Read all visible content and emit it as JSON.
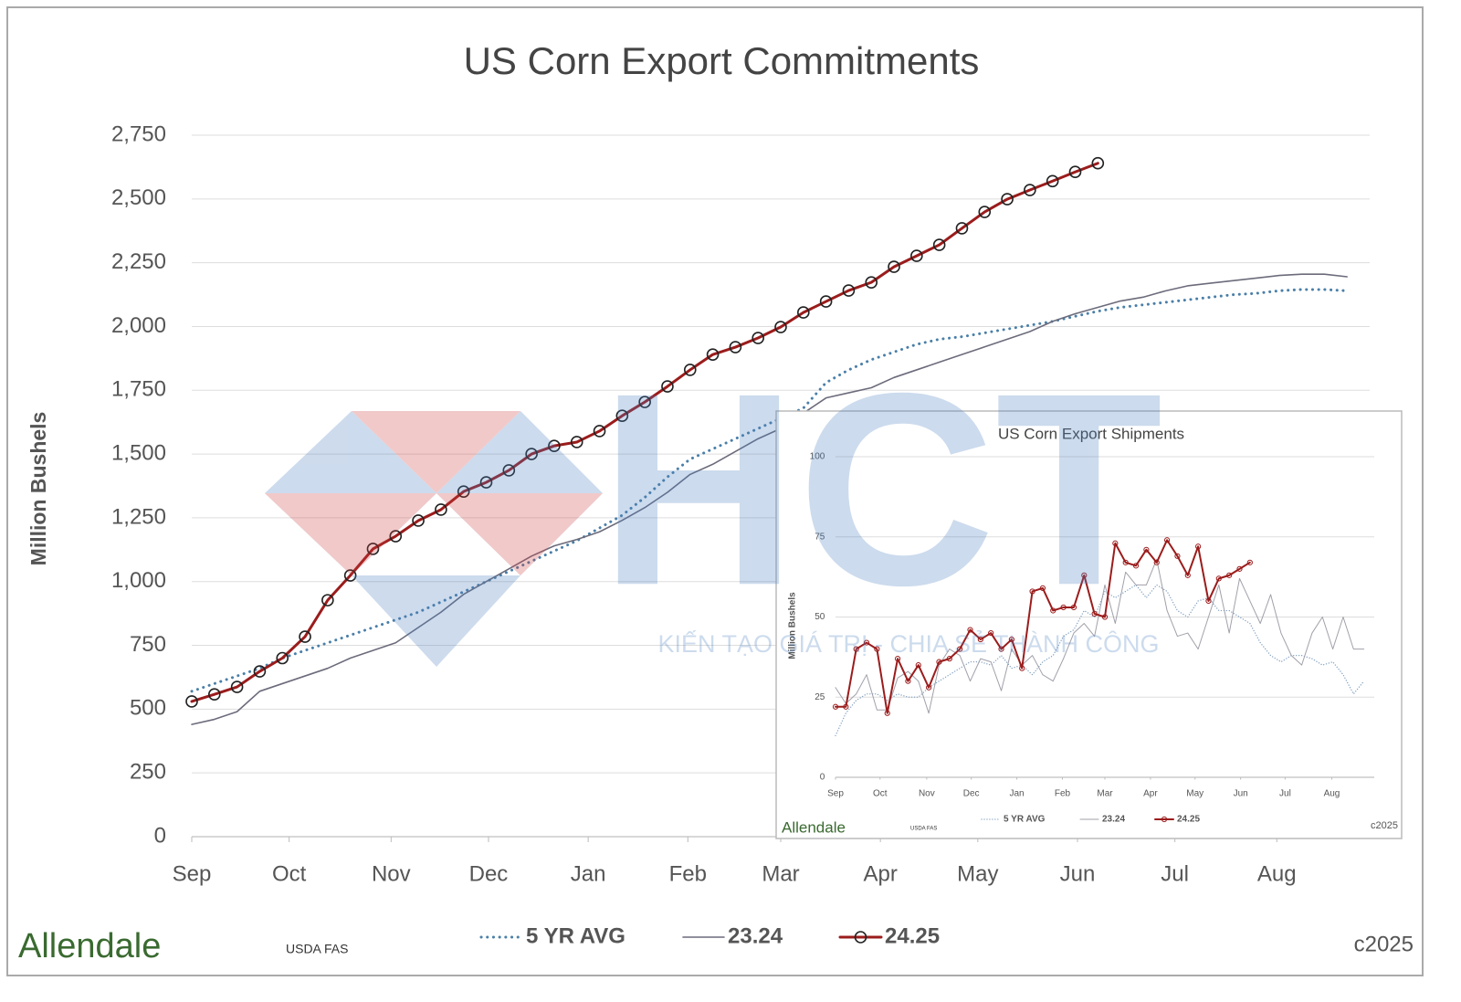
{
  "chart_data": [
    {
      "type": "line",
      "title": "US Corn Export Commitments",
      "ylabel": "Million Bushels",
      "xlim": [
        0,
        52
      ],
      "ylim": [
        0,
        2750
      ],
      "xticks": [
        {
          "value": 0,
          "label": "Sep"
        },
        {
          "value": 4.3,
          "label": "Oct"
        },
        {
          "value": 8.8,
          "label": "Nov"
        },
        {
          "value": 13.1,
          "label": "Dec"
        },
        {
          "value": 17.5,
          "label": "Jan"
        },
        {
          "value": 21.9,
          "label": "Feb"
        },
        {
          "value": 26,
          "label": "Mar"
        },
        {
          "value": 30.4,
          "label": "Apr"
        },
        {
          "value": 34.7,
          "label": "May"
        },
        {
          "value": 39.1,
          "label": "Jun"
        },
        {
          "value": 43.4,
          "label": "Jul"
        },
        {
          "value": 47.9,
          "label": "Aug"
        }
      ],
      "yticks": [
        0,
        250,
        500,
        750,
        {
          "value": 1000,
          "label": "1,000"
        },
        {
          "value": 1250,
          "label": "1,250"
        },
        {
          "value": 1500,
          "label": "1,500"
        },
        {
          "value": 1750,
          "label": "1,750"
        },
        {
          "value": 2000,
          "label": "2,000"
        },
        {
          "value": 2250,
          "label": "2,250"
        },
        {
          "value": 2500,
          "label": "2,500"
        },
        {
          "value": 2750,
          "label": "2,750"
        }
      ],
      "grid": true,
      "series": [
        {
          "name": "5 YR AVG",
          "color": "#4a7fa8",
          "style": "dotted",
          "values": [
            570,
            600,
            630,
            660,
            700,
            730,
            760,
            790,
            820,
            850,
            880,
            920,
            960,
            1000,
            1040,
            1080,
            1120,
            1160,
            1210,
            1260,
            1330,
            1410,
            1480,
            1520,
            1560,
            1600,
            1640,
            1680,
            1780,
            1830,
            1870,
            1900,
            1930,
            1950,
            1960,
            1975,
            1990,
            2005,
            2020,
            2040,
            2060,
            2075,
            2085,
            2095,
            2105,
            2115,
            2125,
            2130,
            2140,
            2145,
            2145,
            2140
          ]
        },
        {
          "name": "23.24",
          "color": "#6b6b7b",
          "style": "solid",
          "values": [
            440,
            460,
            490,
            570,
            600,
            630,
            660,
            700,
            730,
            760,
            820,
            880,
            950,
            1000,
            1050,
            1100,
            1140,
            1165,
            1195,
            1240,
            1290,
            1350,
            1420,
            1460,
            1510,
            1560,
            1600,
            1660,
            1720,
            1740,
            1760,
            1800,
            1830,
            1860,
            1890,
            1920,
            1950,
            1980,
            2020,
            2050,
            2075,
            2100,
            2115,
            2140,
            2160,
            2170,
            2180,
            2190,
            2200,
            2205,
            2205,
            2195
          ]
        },
        {
          "name": "24.25",
          "color": "#9b1c1c",
          "style": "markers",
          "values": [
            530,
            558,
            587,
            648,
            700,
            784,
            927,
            1024,
            1128,
            1178,
            1239,
            1282,
            1353,
            1389,
            1436,
            1500,
            1532,
            1547,
            1590,
            1650,
            1704,
            1765,
            1830,
            1890,
            1919,
            1955,
            1998,
            2055,
            2098,
            2141,
            2173,
            2234,
            2277,
            2320,
            2385,
            2449,
            2499,
            2535,
            2570,
            2606,
            2640
          ]
        }
      ],
      "logo": "Allendale",
      "source": "USDA FAS",
      "copyright": "c2025"
    },
    {
      "type": "line",
      "title": "US Corn Export Shipments",
      "ylabel": "Million Bushels",
      "xlim": [
        0,
        52
      ],
      "ylim": [
        0,
        100
      ],
      "xticks": [
        {
          "value": 0,
          "label": "Sep"
        },
        {
          "value": 4.3,
          "label": "Oct"
        },
        {
          "value": 8.8,
          "label": "Nov"
        },
        {
          "value": 13.1,
          "label": "Dec"
        },
        {
          "value": 17.5,
          "label": "Jan"
        },
        {
          "value": 21.9,
          "label": "Feb"
        },
        {
          "value": 26,
          "label": "Mar"
        },
        {
          "value": 30.4,
          "label": "Apr"
        },
        {
          "value": 34.7,
          "label": "May"
        },
        {
          "value": 39.1,
          "label": "Jun"
        },
        {
          "value": 43.4,
          "label": "Jul"
        },
        {
          "value": 47.9,
          "label": "Aug"
        }
      ],
      "yticks": [
        0,
        25,
        50,
        75,
        100
      ],
      "grid": true,
      "series": [
        {
          "name": "5 YR AVG",
          "color": "#7f9fbf",
          "style": "dotted",
          "values": [
            13,
            20,
            24,
            26,
            26,
            24,
            26,
            25,
            25,
            28,
            30,
            32,
            34,
            36,
            36,
            35,
            38,
            34,
            35,
            32,
            36,
            38,
            44,
            46,
            52,
            50,
            58,
            56,
            58,
            60,
            56,
            60,
            58,
            52,
            50,
            55,
            56,
            52,
            52,
            50,
            48,
            42,
            38,
            36,
            38,
            38,
            37,
            35,
            36,
            32,
            26,
            30
          ]
        },
        {
          "name": "23.24",
          "color": "#a0a0aa",
          "style": "solid",
          "values": [
            28,
            23,
            26,
            32,
            21,
            21,
            31,
            33,
            30,
            20,
            35,
            40,
            38,
            30,
            37,
            36,
            27,
            40,
            35,
            38,
            32,
            30,
            37,
            45,
            48,
            44,
            60,
            48,
            64,
            60,
            60,
            68,
            52,
            44,
            45,
            40,
            50,
            60,
            45,
            62,
            55,
            48,
            57,
            45,
            38,
            35,
            45,
            50,
            40,
            50,
            40,
            40
          ]
        },
        {
          "name": "24.25",
          "color": "#9b1c1c",
          "style": "markers",
          "values": [
            22,
            22,
            40,
            42,
            40,
            20,
            37,
            30,
            35,
            28,
            36,
            37,
            40,
            46,
            43,
            45,
            40,
            43,
            34,
            58,
            59,
            52,
            53,
            53,
            63,
            51,
            50,
            73,
            67,
            66,
            71,
            67,
            74,
            69,
            63,
            72,
            55,
            62,
            63,
            65,
            67
          ]
        }
      ],
      "logo": "Allendale",
      "source": "USDA FAS",
      "copyright": "c2025"
    }
  ],
  "watermark": {
    "brand": "HCT",
    "slogan": "KIẾN TẠO GIÁ TRỊ - CHIA SẺ THÀNH CÔNG"
  }
}
